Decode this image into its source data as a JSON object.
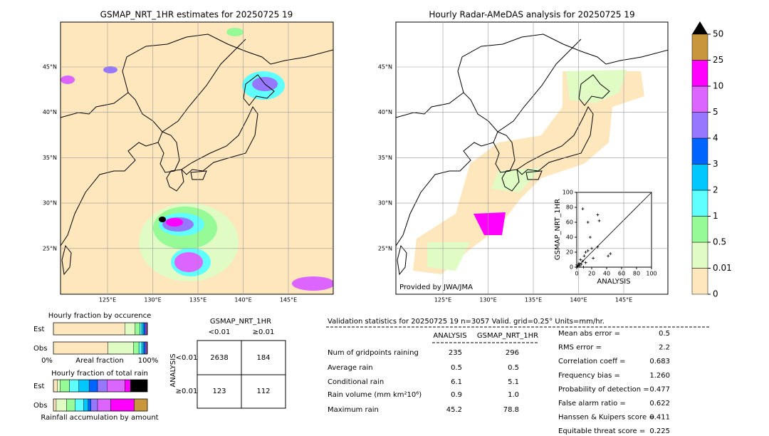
{
  "chart_data": {
    "type": "scatter",
    "xlabel": "ANALYSIS",
    "ylabel": "GSMAP_NRT_1HR",
    "x": [
      8,
      28,
      15,
      30,
      18,
      45,
      42,
      28,
      20,
      15,
      12,
      10,
      5,
      3,
      2,
      1,
      0,
      6,
      8,
      12,
      22,
      4,
      0,
      9
    ],
    "values": [
      78,
      70,
      60,
      62,
      40,
      18,
      15,
      27,
      25,
      22,
      20,
      15,
      10,
      5,
      3,
      1,
      0,
      4,
      8,
      6,
      12,
      2,
      3,
      0
    ],
    "color": "#000000",
    "xlim": [
      0,
      100
    ],
    "ylim": [
      0,
      100
    ],
    "xticks": [
      0,
      20,
      40,
      60,
      80,
      100
    ],
    "yticks": [
      0,
      20,
      40,
      60,
      80,
      100
    ]
  },
  "left_map": {
    "title": "GSMAP_NRT_1HR estimates for 20250725 19",
    "lat_labels": [
      "45°N",
      "40°N",
      "35°N",
      "30°N",
      "25°N"
    ],
    "lon_labels": [
      "125°E",
      "130°E",
      "135°E",
      "140°E",
      "145°E"
    ]
  },
  "right_map": {
    "title": "Hourly Radar-AMeDAS analysis for 20250725 19",
    "lat_labels": [
      "45°N",
      "40°N",
      "35°N",
      "30°N",
      "25°N"
    ],
    "lon_labels": [
      "125°E",
      "130°E",
      "135°E",
      "140°E",
      "145°E"
    ],
    "credit": "Provided by JWA/JMA"
  },
  "colorbar": {
    "labels": [
      0,
      0.01,
      0.5,
      1,
      2,
      3,
      4,
      5,
      10,
      25,
      50
    ],
    "colors": [
      "#fee6bd",
      "#e0fbc4",
      "#96fa96",
      "#60ffff",
      "#00c8ff",
      "#0064ff",
      "#9678ff",
      "#dc64ff",
      "#ff00ff",
      "#c8963c",
      "#000000"
    ]
  },
  "fractions": {
    "occurrence": {
      "title": "Hourly fraction by occurence",
      "left": "0%",
      "middle": "Areal fraction",
      "right": "100%",
      "rows": [
        {
          "name": "Est",
          "values": [
            0.76,
            0.11,
            0.05,
            0.02,
            0.02,
            0.015,
            0.01,
            0.01,
            0.005,
            0,
            0
          ]
        },
        {
          "name": "Obs",
          "values": [
            0.58,
            0.27,
            0.06,
            0.03,
            0.02,
            0.015,
            0.01,
            0.01,
            0.005,
            0,
            0
          ]
        }
      ]
    },
    "total": {
      "title": "Hourly fraction of total rain",
      "footer": "Rainfall accumulation by amount",
      "rows": [
        {
          "name": "Est",
          "values": [
            0.04,
            0.03,
            0.1,
            0.1,
            0.11,
            0.09,
            0.1,
            0.19,
            0.06,
            0,
            0.18
          ]
        },
        {
          "name": "Obs",
          "values": [
            0.03,
            0.11,
            0.09,
            0.09,
            0.05,
            0.03,
            0.07,
            0.14,
            0.25,
            0.14,
            0
          ]
        }
      ]
    }
  },
  "contingency": {
    "title": "GSMAP_NRT_1HR",
    "columns": [
      "<0.01",
      "≥0.01"
    ],
    "side": "ANALYSIS",
    "rows": [
      "<0.01",
      "≥0.01"
    ],
    "cells": [
      [
        "2638",
        "184"
      ],
      [
        "123",
        "112"
      ]
    ]
  },
  "stats": {
    "header": "Validation statistics for 20250725 19  n=3057 Valid. grid=0.25° Units=mm/hr.",
    "columns": [
      "ANALYSIS",
      "GSMAP_NRT_1HR"
    ],
    "rows": [
      [
        "Num of gridpoints raining",
        "235",
        "296"
      ],
      [
        "Average rain",
        "0.5",
        "0.5"
      ],
      [
        "Conditional rain",
        "6.1",
        "5.1"
      ],
      [
        "Rain volume (mm km²10⁶)",
        "0.9",
        "1.0"
      ],
      [
        "Maximum rain",
        "45.2",
        "78.8"
      ]
    ]
  },
  "scores": [
    [
      "Mean abs error =",
      "0.5"
    ],
    [
      "RMS error =",
      "2.2"
    ],
    [
      "Correlation coeff =",
      "0.683"
    ],
    [
      "Frequency bias =",
      "1.260"
    ],
    [
      "Probability of detection =",
      "0.477"
    ],
    [
      "False alarm ratio =",
      "0.622"
    ],
    [
      "Hanssen & Kuipers score =",
      "0.411"
    ],
    [
      "Equitable threat score =",
      "0.225"
    ]
  ]
}
